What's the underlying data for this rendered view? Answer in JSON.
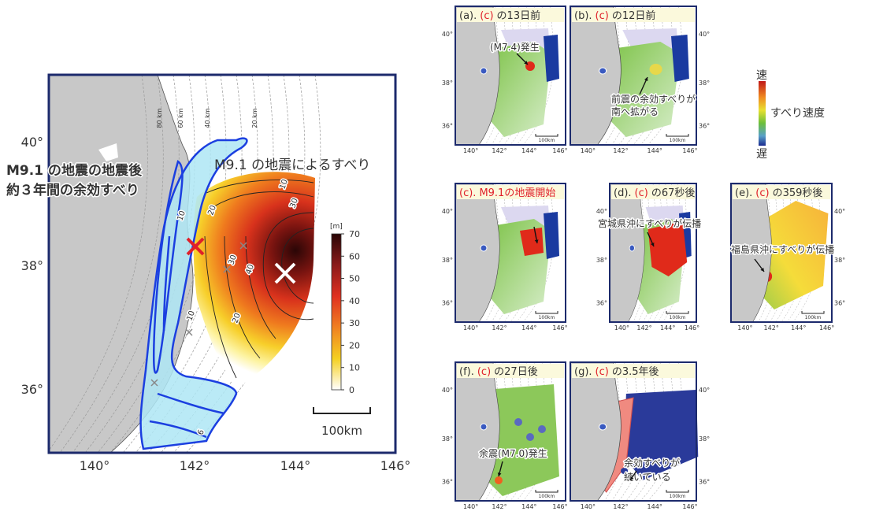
{
  "main_map": {
    "lat_labels": [
      "40°",
      "38°",
      "36°"
    ],
    "lon_labels": [
      "140°",
      "142°",
      "144°",
      "146°"
    ],
    "depth_labels": [
      "80 km",
      "60 km",
      "40 km",
      "20 km"
    ],
    "contour_labels": [
      "10",
      "30",
      "10",
      "20",
      "30",
      "40",
      "10",
      "20",
      "6"
    ],
    "afterslip_label": [
      "M9.1 の地震の地震後",
      "約３年間の余効すべり"
    ],
    "coseismic_label": "M9.1 の地震によるすべり",
    "colorbar": {
      "unit": "[m]",
      "ticks": [
        70,
        60,
        50,
        40,
        30,
        20,
        10,
        0
      ]
    },
    "scale_label": "100km"
  },
  "panels": [
    {
      "label": "(a).",
      "ref": "(c)",
      "title": "の13日前",
      "notes": [
        "(M7.4)発生"
      ]
    },
    {
      "label": "(b).",
      "ref": "(c)",
      "title": "の12日前",
      "notes": [
        "前震の余効すべりが",
        "南へ拡がる"
      ]
    },
    {
      "label": "(c).",
      "title": "M9.1の地震開始"
    },
    {
      "label": "(d).",
      "ref": "(c)",
      "title": "の67秒後",
      "notes": [
        "宮城県沖にすべりが伝播"
      ]
    },
    {
      "label": "(e).",
      "ref": "(c)",
      "title": "の359秒後",
      "notes": [
        "福島県沖にすべりが伝播"
      ]
    },
    {
      "label": "(f).",
      "ref": "(c)",
      "title": "の27日後",
      "notes": [
        "余震(M7.0)発生"
      ]
    },
    {
      "label": "(g).",
      "ref": "(c)",
      "title": "の3.5年後",
      "notes": [
        "余効すべりが",
        "続いている"
      ]
    }
  ],
  "panel_axes": {
    "lat_labels": [
      "40°",
      "38°",
      "36°"
    ],
    "lon_labels": [
      "140°",
      "142°",
      "144°",
      "146°"
    ],
    "scale_label": "100km"
  },
  "speed_legend": {
    "fast": "速",
    "label": "すべり速度",
    "slow": "遅"
  }
}
